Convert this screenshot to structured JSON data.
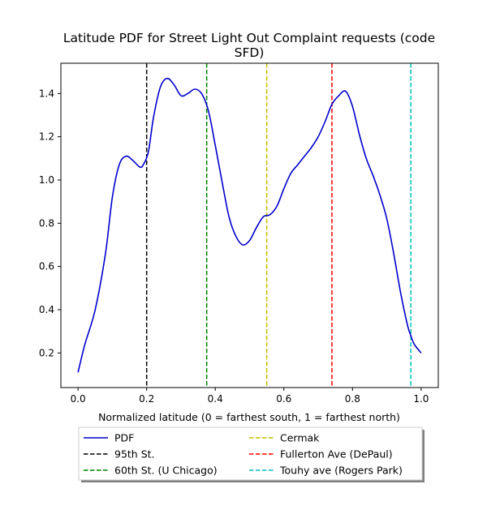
{
  "chart_data": {
    "type": "line",
    "title_line1": "Latitude PDF for Street Light Out Complaint  requests (code",
    "title_line2": "SFD)",
    "xlabel": "Normalized latitude (0 = farthest south, 1 = farthest north)",
    "ylabel": "",
    "xlim": [
      -0.05,
      1.05
    ],
    "ylim": [
      0.04,
      1.54
    ],
    "x_ticks": [
      0.0,
      0.2,
      0.4,
      0.6,
      0.8,
      1.0
    ],
    "x_tick_labels": [
      "0.0",
      "0.2",
      "0.4",
      "0.6",
      "0.8",
      "1.0"
    ],
    "y_ticks": [
      0.2,
      0.4,
      0.6,
      0.8,
      1.0,
      1.2,
      1.4
    ],
    "y_tick_labels": [
      "0.2",
      "0.4",
      "0.6",
      "0.8",
      "1.0",
      "1.2",
      "1.4"
    ],
    "grid": false,
    "legend_position": "below plot, two columns",
    "series": [
      {
        "name": "PDF",
        "color": "#0000cc",
        "style": "solid",
        "x": [
          0.0,
          0.02,
          0.05,
          0.08,
          0.1,
          0.12,
          0.14,
          0.16,
          0.18,
          0.19,
          0.205,
          0.22,
          0.24,
          0.26,
          0.28,
          0.3,
          0.32,
          0.34,
          0.36,
          0.38,
          0.4,
          0.42,
          0.44,
          0.46,
          0.48,
          0.5,
          0.52,
          0.54,
          0.56,
          0.58,
          0.6,
          0.62,
          0.64,
          0.66,
          0.68,
          0.7,
          0.72,
          0.74,
          0.76,
          0.78,
          0.8,
          0.82,
          0.84,
          0.86,
          0.88,
          0.9,
          0.92,
          0.94,
          0.96,
          0.97,
          0.98,
          1.0
        ],
        "y": [
          0.11,
          0.24,
          0.4,
          0.66,
          0.92,
          1.07,
          1.11,
          1.09,
          1.06,
          1.07,
          1.13,
          1.29,
          1.43,
          1.47,
          1.44,
          1.39,
          1.4,
          1.42,
          1.4,
          1.32,
          1.16,
          0.99,
          0.83,
          0.74,
          0.7,
          0.72,
          0.78,
          0.83,
          0.84,
          0.88,
          0.96,
          1.03,
          1.07,
          1.11,
          1.15,
          1.2,
          1.27,
          1.35,
          1.39,
          1.41,
          1.34,
          1.21,
          1.1,
          1.02,
          0.93,
          0.82,
          0.66,
          0.48,
          0.33,
          0.28,
          0.24,
          0.2
        ]
      },
      {
        "name": "95th St.",
        "color": "#000000",
        "style": "dashed",
        "vline": 0.2
      },
      {
        "name": "60th St. (U Chicago)",
        "color": "#008000",
        "style": "dashed",
        "vline": 0.375
      },
      {
        "name": "Cermak",
        "color": "#bfbf00",
        "style": "dashed",
        "vline": 0.55
      },
      {
        "name": "Fullerton Ave (DePaul)",
        "color": "#ff0000",
        "style": "dashed",
        "vline": 0.74
      },
      {
        "name": "Touhy ave (Rogers Park)",
        "color": "#00bfbf",
        "style": "dashed",
        "vline": 0.97
      }
    ]
  }
}
